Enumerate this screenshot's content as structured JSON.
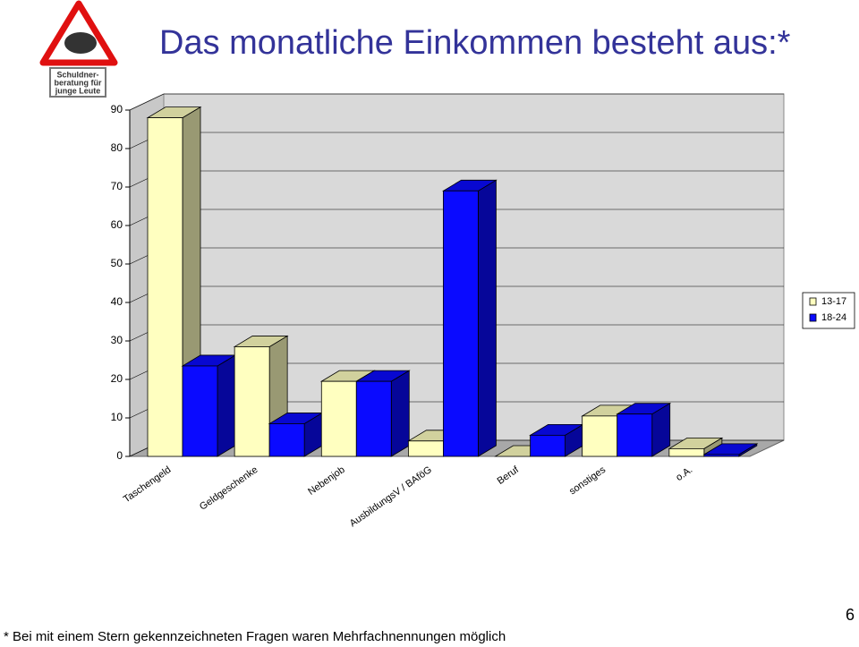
{
  "logo": {
    "lines": [
      "Schuldner-",
      "beratung für",
      "junge Leute"
    ]
  },
  "chart_data": {
    "type": "bar3d",
    "title": "Das monatliche Einkommen besteht aus:*",
    "categories": [
      "Taschengeld",
      "Geldgeschenke",
      "Nebenjob",
      "AusbildungsV / BAföG",
      "Beruf",
      "sonstiges",
      "o.A."
    ],
    "series": [
      {
        "name": "13-17",
        "color": "#ffffc0",
        "values": [
          88,
          28.5,
          19.5,
          4,
          0,
          10.5,
          2
        ]
      },
      {
        "name": "18-24",
        "color": "#0a0aff",
        "values": [
          23.5,
          8.5,
          19.5,
          69,
          5.5,
          11,
          0.5
        ]
      }
    ],
    "ylim": [
      0,
      90
    ],
    "yticks": [
      0,
      10,
      20,
      30,
      40,
      50,
      60,
      70,
      80,
      90
    ],
    "grid": true,
    "legend": "right"
  },
  "footnote": "* Bei mit einem Stern gekennzeichneten Fragen waren Mehrfachnennungen möglich",
  "page_number": "6"
}
